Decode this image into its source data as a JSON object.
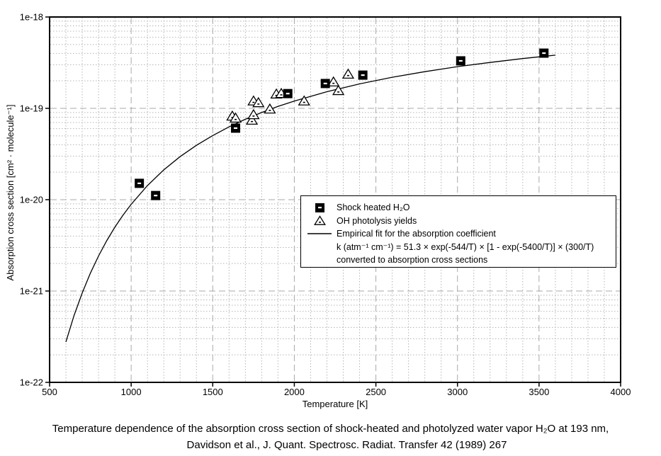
{
  "figure": {
    "caption_line1": "Temperature dependence of the absorption cross section of shock-heated and photolyzed water vapor H₂O at 193 nm,",
    "caption_line2": "Davidson et al., J. Quant. Spectrosc. Radiat. Transfer 42 (1989) 267"
  },
  "legend": {
    "item1": "Shock heated H₂O",
    "item2": "OH photolysis yields",
    "item3_line1": "Empirical fit for the absorption coefficient",
    "item3_line2": "k (atm⁻¹ cm⁻¹) = 51.3 × exp(-544/T) × [1 - exp(-5400/T)] × (300/T)",
    "item3_line3": "converted to absorption cross sections"
  },
  "chart_data": {
    "type": "scatter",
    "title": "",
    "xlabel": "Temperature [K]",
    "ylabel": "Absorption cross section [cm² · molecule⁻¹]",
    "x_axis": {
      "label": "Temperature [K]",
      "scale": "linear",
      "min": 500,
      "max": 4000,
      "major_ticks": [
        500,
        1000,
        1500,
        2000,
        2500,
        3000,
        3500,
        4000
      ],
      "minor_step": 100
    },
    "y_axis": {
      "label": "Absorption cross section [cm² · molecule⁻¹]",
      "scale": "log",
      "min": 1e-22,
      "max": 1e-18,
      "tick_labels": [
        "1e-18",
        "1e-19",
        "1e-20",
        "1e-21",
        "1e-22"
      ],
      "tick_values": [
        1e-18,
        1e-19,
        1e-20,
        1e-21,
        1e-22
      ]
    },
    "grid": true,
    "legend_position": "center-right",
    "series": [
      {
        "name": "Shock heated H₂O",
        "marker": "filled-square",
        "points": [
          [
            1050,
            1.51e-20
          ],
          [
            1150,
            1.11e-20
          ],
          [
            1640,
            6.07e-20
          ],
          [
            1960,
            1.45e-19
          ],
          [
            2190,
            1.87e-19
          ],
          [
            2420,
            2.31e-19
          ],
          [
            3020,
            3.31e-19
          ],
          [
            3530,
            4.02e-19
          ]
        ]
      },
      {
        "name": "OH photolysis yields",
        "marker": "open-triangle",
        "points": [
          [
            1620,
            8.2e-20
          ],
          [
            1640,
            7.8e-20
          ],
          [
            1740,
            7.4e-20
          ],
          [
            1750,
            8.5e-20
          ],
          [
            1750,
            1.2e-19
          ],
          [
            1780,
            1.15e-19
          ],
          [
            1850,
            9.8e-20
          ],
          [
            1890,
            1.43e-19
          ],
          [
            1920,
            1.45e-19
          ],
          [
            2060,
            1.2e-19
          ],
          [
            2240,
            1.94e-19
          ],
          [
            2270,
            1.56e-19
          ],
          [
            2330,
            2.36e-19
          ]
        ]
      },
      {
        "name": "Empirical fit for the absorption coefficient, converted to absorption cross sections",
        "type": "fit-line",
        "points": [
          [
            600,
            2.77e-22
          ],
          [
            650,
            5.39e-22
          ],
          [
            700,
            9.55e-22
          ],
          [
            750,
            1.57e-21
          ],
          [
            800,
            2.42e-21
          ],
          [
            850,
            3.55e-21
          ],
          [
            900,
            4.99e-21
          ],
          [
            950,
            6.76e-21
          ],
          [
            1000,
            8.89e-21
          ],
          [
            1100,
            1.43e-20
          ],
          [
            1200,
            2.12e-20
          ],
          [
            1300,
            2.96e-20
          ],
          [
            1400,
            3.94e-20
          ],
          [
            1500,
            5.04e-20
          ],
          [
            1600,
            6.26e-20
          ],
          [
            1700,
            7.59e-20
          ],
          [
            1800,
            9e-20
          ],
          [
            1900,
            1.05e-19
          ],
          [
            2000,
            1.2e-19
          ],
          [
            2200,
            1.52e-19
          ],
          [
            2400,
            1.85e-19
          ],
          [
            2600,
            2.19e-19
          ],
          [
            2800,
            2.52e-19
          ],
          [
            3000,
            2.86e-19
          ],
          [
            3200,
            3.18e-19
          ],
          [
            3400,
            3.51e-19
          ],
          [
            3600,
            3.82e-19
          ]
        ]
      }
    ]
  }
}
